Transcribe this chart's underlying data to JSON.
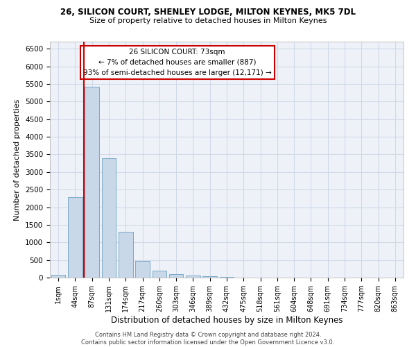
{
  "title_line1": "26, SILICON COURT, SHENLEY LODGE, MILTON KEYNES, MK5 7DL",
  "title_line2": "Size of property relative to detached houses in Milton Keynes",
  "xlabel": "Distribution of detached houses by size in Milton Keynes",
  "ylabel": "Number of detached properties",
  "footnote": "Contains HM Land Registry data © Crown copyright and database right 2024.\nContains public sector information licensed under the Open Government Licence v3.0.",
  "bar_labels": [
    "1sqm",
    "44sqm",
    "87sqm",
    "131sqm",
    "174sqm",
    "217sqm",
    "260sqm",
    "303sqm",
    "346sqm",
    "389sqm",
    "432sqm",
    "475sqm",
    "518sqm",
    "561sqm",
    "604sqm",
    "648sqm",
    "691sqm",
    "734sqm",
    "777sqm",
    "820sqm",
    "863sqm"
  ],
  "bar_values": [
    75,
    2280,
    5420,
    3380,
    1310,
    480,
    195,
    90,
    55,
    35,
    15,
    5,
    2,
    0,
    0,
    0,
    0,
    0,
    0,
    0,
    0
  ],
  "bar_color": "#c8d8e8",
  "bar_edgecolor": "#7aaac8",
  "grid_color": "#d0d8e8",
  "bg_color": "#eef2f8",
  "annotation_text": "26 SILICON COURT: 73sqm\n← 7% of detached houses are smaller (887)\n93% of semi-detached houses are larger (12,171) →",
  "vline_color": "#cc0000",
  "ylim": [
    0,
    6700
  ],
  "yticks": [
    0,
    500,
    1000,
    1500,
    2000,
    2500,
    3000,
    3500,
    4000,
    4500,
    5000,
    5500,
    6000,
    6500
  ]
}
